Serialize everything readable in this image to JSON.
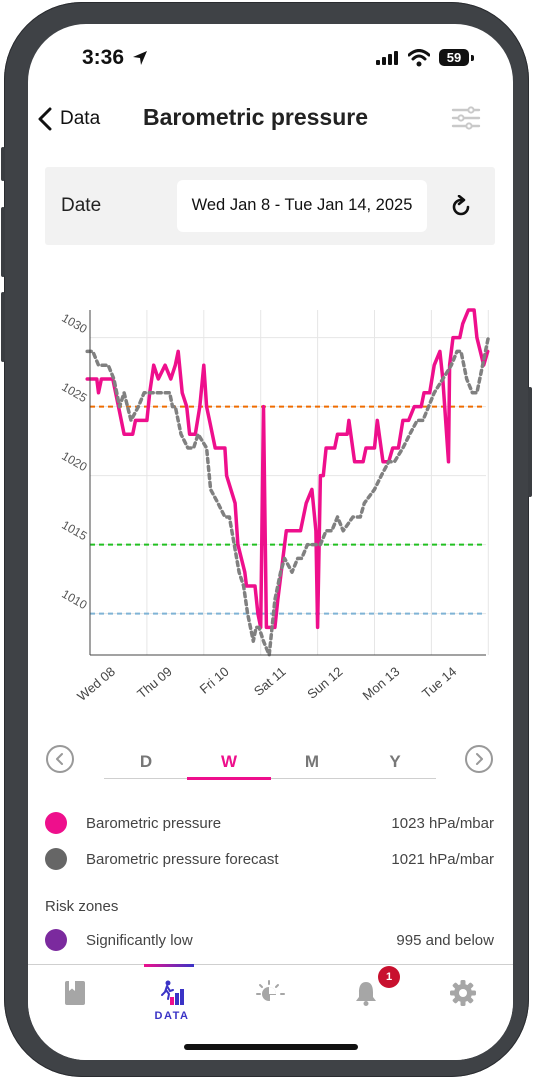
{
  "status_bar": {
    "time": "3:36",
    "battery": "59"
  },
  "nav": {
    "back_label": "Data",
    "title": "Barometric pressure"
  },
  "date_panel": {
    "label": "Date",
    "range": "Wed Jan 8 - Tue Jan 14, 2025"
  },
  "chart_data": {
    "type": "line",
    "title": "",
    "xlabel": "",
    "ylabel": "",
    "x_tick_labels": [
      "Wed 08",
      "Thu 09",
      "Fri 10",
      "Sat 11",
      "Sun 12",
      "Mon 13",
      "Tue 14"
    ],
    "y_tick_labels": [
      "1010",
      "1015",
      "1020",
      "1025",
      "1030"
    ],
    "xlim": [
      0,
      7
    ],
    "ylim": [
      1007,
      1032
    ],
    "grid": {
      "vertical": true,
      "horizontal": true
    },
    "threshold_lines": [
      {
        "value": 1025,
        "color": "#ef6c00"
      },
      {
        "value": 1015,
        "color": "#22c022"
      },
      {
        "value": 1010,
        "color": "#7fb3d5"
      }
    ],
    "series": [
      {
        "color": "#ee0f8c",
        "style": "solid",
        "points": [
          [
            -0.05,
            1027
          ],
          [
            0.12,
            1027
          ],
          [
            0.15,
            1026
          ],
          [
            0.2,
            1027
          ],
          [
            0.4,
            1027
          ],
          [
            0.5,
            1025
          ],
          [
            0.6,
            1023
          ],
          [
            0.75,
            1023
          ],
          [
            0.8,
            1024
          ],
          [
            1.0,
            1024
          ],
          [
            1.05,
            1026
          ],
          [
            1.12,
            1028
          ],
          [
            1.2,
            1027
          ],
          [
            1.32,
            1028
          ],
          [
            1.42,
            1027
          ],
          [
            1.5,
            1028
          ],
          [
            1.55,
            1029
          ],
          [
            1.62,
            1026
          ],
          [
            1.7,
            1025
          ],
          [
            1.75,
            1023
          ],
          [
            1.85,
            1023
          ],
          [
            1.93,
            1025
          ],
          [
            2.0,
            1028
          ],
          [
            2.05,
            1025
          ],
          [
            2.1,
            1024
          ],
          [
            2.2,
            1022
          ],
          [
            2.37,
            1022
          ],
          [
            2.4,
            1020
          ],
          [
            2.55,
            1018
          ],
          [
            2.6,
            1015
          ],
          [
            2.72,
            1013
          ],
          [
            2.75,
            1012
          ],
          [
            2.9,
            1012
          ],
          [
            2.95,
            1010
          ],
          [
            3.0,
            1009
          ],
          [
            3.05,
            1025
          ],
          [
            3.1,
            1009
          ],
          [
            3.25,
            1009
          ],
          [
            3.3,
            1011
          ],
          [
            3.45,
            1016
          ],
          [
            3.7,
            1016
          ],
          [
            3.8,
            1018
          ],
          [
            3.9,
            1019
          ],
          [
            3.97,
            1016
          ],
          [
            4.0,
            1009
          ],
          [
            4.05,
            1020
          ],
          [
            4.1,
            1020
          ],
          [
            4.15,
            1022
          ],
          [
            4.3,
            1022
          ],
          [
            4.35,
            1023
          ],
          [
            4.52,
            1023
          ],
          [
            4.55,
            1024
          ],
          [
            4.65,
            1021
          ],
          [
            4.72,
            1021
          ],
          [
            4.8,
            1021
          ],
          [
            4.85,
            1022
          ],
          [
            5.0,
            1022
          ],
          [
            5.05,
            1024
          ],
          [
            5.15,
            1021
          ],
          [
            5.25,
            1021
          ],
          [
            5.32,
            1022
          ],
          [
            5.42,
            1022
          ],
          [
            5.5,
            1024
          ],
          [
            5.6,
            1024
          ],
          [
            5.7,
            1025
          ],
          [
            5.82,
            1025
          ],
          [
            5.87,
            1026
          ],
          [
            5.97,
            1026
          ],
          [
            6.05,
            1028
          ],
          [
            6.15,
            1029
          ],
          [
            6.2,
            1027
          ],
          [
            6.3,
            1021
          ],
          [
            6.32,
            1028
          ],
          [
            6.38,
            1030
          ],
          [
            6.5,
            1030
          ],
          [
            6.55,
            1031
          ],
          [
            6.65,
            1032
          ],
          [
            6.75,
            1032
          ],
          [
            6.8,
            1030
          ],
          [
            6.92,
            1028
          ],
          [
            6.99,
            1029
          ]
        ]
      },
      {
        "color": "#808080",
        "style": "dashed",
        "points": [
          [
            -0.05,
            1029
          ],
          [
            0.05,
            1029
          ],
          [
            0.15,
            1028
          ],
          [
            0.32,
            1028
          ],
          [
            0.42,
            1027
          ],
          [
            0.52,
            1025
          ],
          [
            0.6,
            1026
          ],
          [
            0.72,
            1024
          ],
          [
            0.85,
            1025
          ],
          [
            0.95,
            1026
          ],
          [
            1.05,
            1026
          ],
          [
            1.15,
            1026
          ],
          [
            1.32,
            1026
          ],
          [
            1.4,
            1026
          ],
          [
            1.45,
            1025
          ],
          [
            1.5,
            1025
          ],
          [
            1.6,
            1023
          ],
          [
            1.72,
            1022
          ],
          [
            1.82,
            1022
          ],
          [
            1.9,
            1023
          ],
          [
            2.05,
            1022
          ],
          [
            2.12,
            1019
          ],
          [
            2.25,
            1018
          ],
          [
            2.37,
            1017
          ],
          [
            2.45,
            1017
          ],
          [
            2.62,
            1013
          ],
          [
            2.7,
            1012
          ],
          [
            2.77,
            1010
          ],
          [
            2.87,
            1008
          ],
          [
            2.92,
            1009
          ],
          [
            2.97,
            1009
          ],
          [
            3.05,
            1008
          ],
          [
            3.15,
            1007
          ],
          [
            3.25,
            1011
          ],
          [
            3.35,
            1013
          ],
          [
            3.42,
            1014
          ],
          [
            3.55,
            1013
          ],
          [
            3.65,
            1014
          ],
          [
            3.72,
            1014
          ],
          [
            3.82,
            1015
          ],
          [
            3.92,
            1015
          ],
          [
            4.05,
            1015
          ],
          [
            4.15,
            1016
          ],
          [
            4.25,
            1016
          ],
          [
            4.35,
            1017
          ],
          [
            4.45,
            1016
          ],
          [
            4.62,
            1017
          ],
          [
            4.75,
            1017
          ],
          [
            4.82,
            1018
          ],
          [
            5.0,
            1019
          ],
          [
            5.12,
            1020
          ],
          [
            5.25,
            1021
          ],
          [
            5.35,
            1021
          ],
          [
            5.5,
            1022
          ],
          [
            5.62,
            1023
          ],
          [
            5.75,
            1024
          ],
          [
            5.85,
            1024
          ],
          [
            5.95,
            1025
          ],
          [
            6.05,
            1026
          ],
          [
            6.2,
            1027
          ],
          [
            6.35,
            1028
          ],
          [
            6.45,
            1029
          ],
          [
            6.52,
            1029
          ],
          [
            6.62,
            1027
          ],
          [
            6.72,
            1026
          ],
          [
            6.8,
            1026
          ],
          [
            6.9,
            1028
          ],
          [
            7.0,
            1030
          ]
        ]
      }
    ]
  },
  "period_selector": {
    "tabs": [
      "D",
      "W",
      "M",
      "Y"
    ],
    "selected": "W"
  },
  "legend": [
    {
      "label": "Barometric pressure",
      "value": "1023 hPa/mbar",
      "color": "#ee0f8c"
    },
    {
      "label": "Barometric pressure forecast",
      "value": "1021 hPa/mbar",
      "color": "#666666"
    }
  ],
  "risk_zones": {
    "title": "Risk zones",
    "items": [
      {
        "label": "Significantly low",
        "value": "995 and below",
        "color": "#7b2a9e"
      }
    ]
  },
  "tab_bar": {
    "items": [
      {
        "icon": "book-icon",
        "label": ""
      },
      {
        "icon": "data-icon",
        "label": "DATA"
      },
      {
        "icon": "sun-cloud-icon",
        "label": ""
      },
      {
        "icon": "bell-icon",
        "label": "",
        "badge": "1"
      },
      {
        "icon": "gear-icon",
        "label": ""
      }
    ]
  }
}
